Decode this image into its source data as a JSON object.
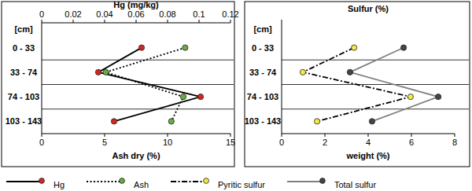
{
  "chart_data": [
    {
      "type": "line",
      "orientation": "horizontal",
      "x2_label": "Hg  (mg/kg)",
      "x_label": "Ash dry (%)",
      "y_label": "[cm]",
      "categories": [
        "0 - 33",
        "33 - 74",
        "74 - 103",
        "103 - 143"
      ],
      "series": [
        {
          "name": "Hg",
          "color": "#d7261e",
          "axis": "x2",
          "marker": "circle",
          "line_style": "solid",
          "values": [
            0.0635,
            0.036,
            0.101,
            0.046
          ]
        },
        {
          "name": "Ash",
          "color": "#6aad45",
          "marker": "circle",
          "line_style": "dotted",
          "values": [
            11.4,
            5.1,
            11.25,
            10.3
          ]
        }
      ],
      "xlim": [
        0,
        15
      ],
      "xticks": [
        0,
        5,
        10,
        15
      ],
      "x2lim": [
        0,
        0.12
      ],
      "x2ticks": [
        0,
        0.02,
        0.04,
        0.06,
        0.08,
        0.1,
        0.12
      ],
      "grid": false,
      "legend": "bottom"
    },
    {
      "type": "line",
      "orientation": "horizontal",
      "title": "Sulfur (%)",
      "x_label": "weight (%)",
      "y_label": "[cm]",
      "categories": [
        "0 - 33",
        "33 - 74",
        "74 - 103",
        "103 - 143"
      ],
      "series": [
        {
          "name": "Pyritic sulfur",
          "color": "#f3e84a",
          "marker": "circle",
          "line_style": "dashdot",
          "values": [
            3.35,
            0.98,
            5.96,
            1.64
          ]
        },
        {
          "name": "Total sulfur",
          "color": "#454545",
          "marker": "circle",
          "line_style": "solid",
          "values": [
            5.64,
            3.16,
            7.24,
            4.18
          ]
        }
      ],
      "xlim": [
        0,
        8
      ],
      "xticks": [
        0,
        2,
        4,
        6,
        8
      ],
      "grid": false,
      "legend": "bottom"
    }
  ]
}
